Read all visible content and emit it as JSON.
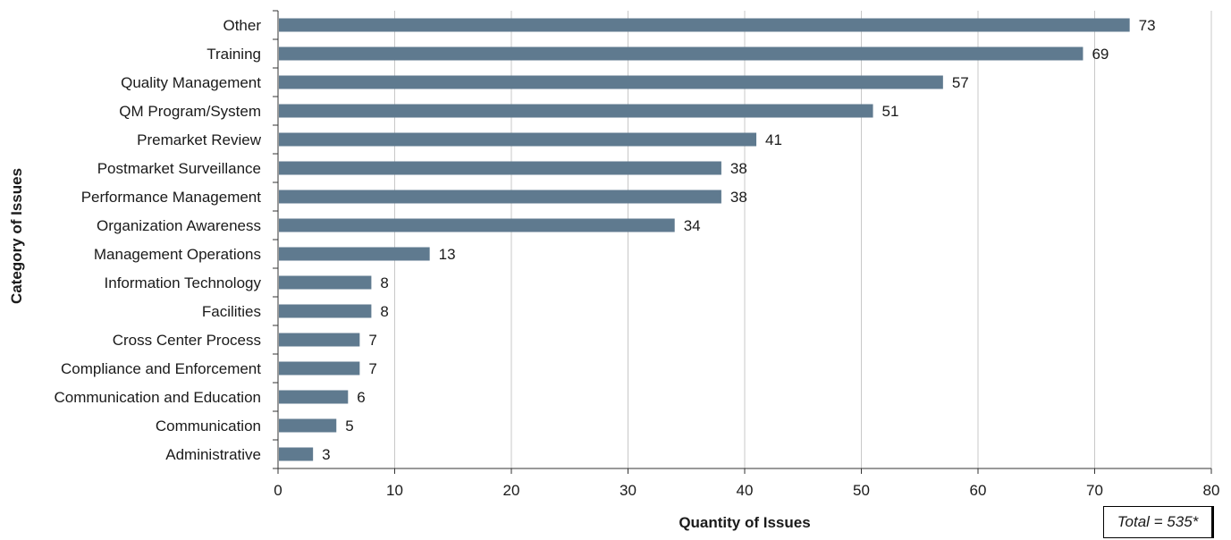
{
  "chart_data": {
    "type": "bar",
    "orientation": "horizontal",
    "categories": [
      "Other",
      "Training",
      "Quality Management",
      "QM Program/System",
      "Premarket Review",
      "Postmarket Surveillance",
      "Performance Management",
      "Organization Awareness",
      "Management Operations",
      "Information Technology",
      "Facilities",
      "Cross Center Process",
      "Compliance and Enforcement",
      "Communication and Education",
      "Communication",
      "Administrative"
    ],
    "values": [
      73,
      69,
      57,
      51,
      41,
      38,
      38,
      34,
      13,
      8,
      8,
      7,
      7,
      6,
      5,
      3
    ],
    "xlabel": "Quantity of Issues",
    "ylabel": "Category of Issues",
    "xlim": [
      0,
      80
    ],
    "xticks": [
      0,
      10,
      20,
      30,
      40,
      50,
      60,
      70,
      80
    ],
    "grid": "vertical",
    "data_labels": true,
    "annotation": "Total = 535*",
    "bar_color": "#5f7a8f",
    "grid_color": "#c8c8c8"
  }
}
